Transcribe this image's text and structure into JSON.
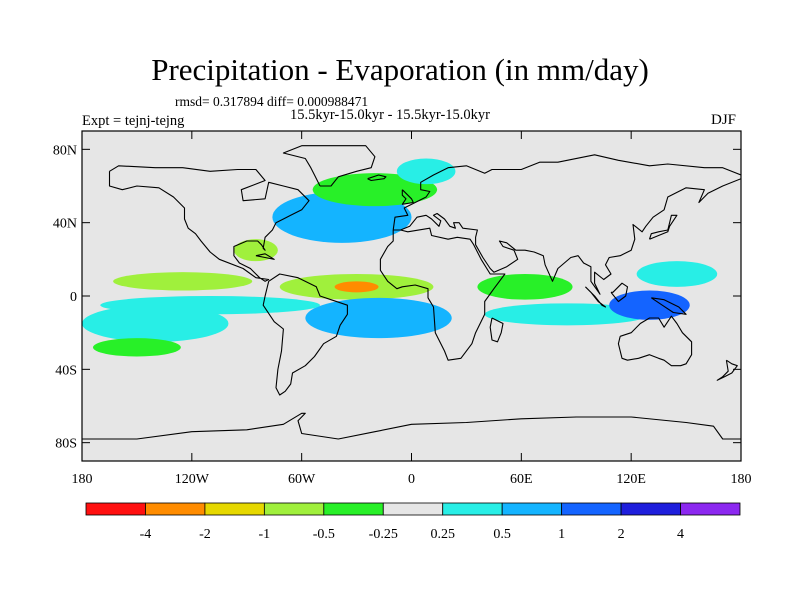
{
  "title": "Precipitation - Evaporation (in mm/day)",
  "stats": "rmsd= 0.317894 diff= 0.000988471",
  "subtitle": "15.5kyr-15.0kyr - 15.5kyr-15.0kyr",
  "experiment": "Expt = tejnj-tejng",
  "season": "DJF",
  "map": {
    "projection": "cylindrical-equidistant",
    "lon_range": [
      -180,
      180
    ],
    "lat_range": [
      -90,
      90
    ],
    "background_color": "#e6e6e6",
    "coastline_color": "#000000",
    "x_ticks": [
      {
        "lon": -180,
        "label": "180"
      },
      {
        "lon": -120,
        "label": "120W"
      },
      {
        "lon": -60,
        "label": "60W"
      },
      {
        "lon": 0,
        "label": "0"
      },
      {
        "lon": 60,
        "label": "60E"
      },
      {
        "lon": 120,
        "label": "120E"
      },
      {
        "lon": 180,
        "label": "180"
      }
    ],
    "y_ticks": [
      {
        "lat": 80,
        "label": "80N"
      },
      {
        "lat": 40,
        "label": "40N"
      },
      {
        "lat": 0,
        "label": "0"
      },
      {
        "lat": -40,
        "label": "40S"
      },
      {
        "lat": -80,
        "label": "80S"
      }
    ]
  },
  "colorbar": {
    "boxes": [
      "#ff1010",
      "#ff8c00",
      "#e6d800",
      "#a0f03c",
      "#28f028",
      "#e6e6e6",
      "#28eee6",
      "#14b4ff",
      "#1464ff",
      "#1e1edc",
      "#8c28f0"
    ],
    "labels": [
      "-4",
      "-2",
      "-1",
      "-0.5",
      "-0.25",
      "0.25",
      "0.5",
      "1",
      "2",
      "4"
    ]
  },
  "regions": [
    {
      "name": "north-atlantic-negative",
      "lon": -38,
      "lat": 41,
      "rlon": 24,
      "rlat": 8,
      "bin": 9
    },
    {
      "name": "north-atlantic-ring",
      "lon": -38,
      "lat": 43,
      "rlon": 38,
      "rlat": 14,
      "bin": 7
    },
    {
      "name": "north-atlantic-band",
      "lon": -20,
      "lat": 58,
      "rlon": 34,
      "rlat": 9,
      "bin": 4
    },
    {
      "name": "norwegian-sea",
      "lon": 8,
      "lat": 68,
      "rlon": 16,
      "rlat": 7,
      "bin": 6
    },
    {
      "name": "atlantic-itcz",
      "lon": -30,
      "lat": 5,
      "rlon": 42,
      "rlat": 7,
      "bin": 3
    },
    {
      "name": "atlantic-itcz-core",
      "lon": -30,
      "lat": 5,
      "rlon": 12,
      "rlat": 3,
      "bin": 1
    },
    {
      "name": "south-atlantic-negative",
      "lon": -18,
      "lat": -12,
      "rlon": 28,
      "rlat": 7,
      "bin": 9
    },
    {
      "name": "south-atlantic-ring",
      "lon": -18,
      "lat": -12,
      "rlon": 40,
      "rlat": 11,
      "bin": 7
    },
    {
      "name": "pacific-itcz",
      "lon": -125,
      "lat": 8,
      "rlon": 38,
      "rlat": 5,
      "bin": 3
    },
    {
      "name": "pacific-spcz",
      "lon": -140,
      "lat": -15,
      "rlon": 28,
      "rlat": 6,
      "bin": 8
    },
    {
      "name": "pacific-spcz-ring",
      "lon": -140,
      "lat": -15,
      "rlon": 40,
      "rlat": 10,
      "bin": 6
    },
    {
      "name": "east-pacific-band",
      "lon": -110,
      "lat": -5,
      "rlon": 60,
      "rlat": 5,
      "bin": 6
    },
    {
      "name": "indian-ocean-north",
      "lon": 62,
      "lat": 5,
      "rlon": 26,
      "rlat": 7,
      "bin": 4
    },
    {
      "name": "indian-ocean-south",
      "lon": 85,
      "lat": -10,
      "rlon": 45,
      "rlat": 6,
      "bin": 6
    },
    {
      "name": "maritime-continent",
      "lon": 130,
      "lat": -5,
      "rlon": 22,
      "rlat": 8,
      "bin": 8
    },
    {
      "name": "west-pacific",
      "lon": 145,
      "lat": 12,
      "rlon": 22,
      "rlat": 7,
      "bin": 6
    },
    {
      "name": "gulf-mexico",
      "lon": -85,
      "lat": 25,
      "rlon": 12,
      "rlat": 6,
      "bin": 3
    },
    {
      "name": "south-pacific-green",
      "lon": -150,
      "lat": -28,
      "rlon": 24,
      "rlat": 5,
      "bin": 4
    }
  ],
  "coastlines": [
    [
      [
        -165,
        68
      ],
      [
        -160,
        71
      ],
      [
        -140,
        70
      ],
      [
        -125,
        70
      ],
      [
        -110,
        68
      ],
      [
        -95,
        69
      ],
      [
        -85,
        69
      ],
      [
        -80,
        63
      ],
      [
        -93,
        58
      ],
      [
        -92,
        52
      ],
      [
        -80,
        53
      ],
      [
        -78,
        62
      ],
      [
        -70,
        60
      ],
      [
        -62,
        58
      ],
      [
        -56,
        52
      ],
      [
        -60,
        47
      ],
      [
        -66,
        44
      ],
      [
        -70,
        42
      ],
      [
        -74,
        40
      ],
      [
        -76,
        36
      ],
      [
        -80,
        32
      ],
      [
        -81,
        26
      ],
      [
        -80,
        25
      ],
      [
        -82,
        28
      ],
      [
        -84,
        30
      ],
      [
        -90,
        30
      ],
      [
        -97,
        27
      ],
      [
        -97,
        22
      ],
      [
        -94,
        18
      ],
      [
        -88,
        15
      ],
      [
        -83,
        10
      ],
      [
        -80,
        8
      ],
      [
        -78,
        9
      ],
      [
        -85,
        10
      ],
      [
        -92,
        15
      ],
      [
        -105,
        20
      ],
      [
        -110,
        24
      ],
      [
        -115,
        30
      ],
      [
        -118,
        34
      ],
      [
        -122,
        37
      ],
      [
        -124,
        42
      ],
      [
        -124,
        48
      ],
      [
        -130,
        54
      ],
      [
        -138,
        59
      ],
      [
        -150,
        60
      ],
      [
        -158,
        58
      ],
      [
        -165,
        60
      ],
      [
        -165,
        68
      ]
    ],
    [
      [
        -78,
        8
      ],
      [
        -72,
        12
      ],
      [
        -62,
        10
      ],
      [
        -52,
        5
      ],
      [
        -50,
        0
      ],
      [
        -44,
        -2
      ],
      [
        -35,
        -5
      ],
      [
        -35,
        -10
      ],
      [
        -39,
        -16
      ],
      [
        -41,
        -22
      ],
      [
        -48,
        -26
      ],
      [
        -53,
        -33
      ],
      [
        -58,
        -38
      ],
      [
        -65,
        -42
      ],
      [
        -66,
        -48
      ],
      [
        -69,
        -52
      ],
      [
        -72,
        -54
      ],
      [
        -74,
        -50
      ],
      [
        -73,
        -40
      ],
      [
        -71,
        -30
      ],
      [
        -70,
        -18
      ],
      [
        -75,
        -14
      ],
      [
        -81,
        -5
      ],
      [
        -80,
        0
      ],
      [
        -78,
        8
      ]
    ],
    [
      [
        -10,
        36
      ],
      [
        -6,
        36
      ],
      [
        -2,
        35
      ],
      [
        10,
        37
      ],
      [
        11,
        33
      ],
      [
        20,
        31
      ],
      [
        25,
        32
      ],
      [
        32,
        31
      ],
      [
        34,
        28
      ],
      [
        38,
        20
      ],
      [
        43,
        12
      ],
      [
        51,
        12
      ],
      [
        45,
        4
      ],
      [
        40,
        -3
      ],
      [
        40,
        -10
      ],
      [
        35,
        -20
      ],
      [
        33,
        -26
      ],
      [
        27,
        -34
      ],
      [
        20,
        -35
      ],
      [
        18,
        -30
      ],
      [
        13,
        -20
      ],
      [
        12,
        -6
      ],
      [
        9,
        -1
      ],
      [
        9,
        4
      ],
      [
        2,
        6
      ],
      [
        -5,
        5
      ],
      [
        -8,
        4
      ],
      [
        -13,
        8
      ],
      [
        -17,
        14
      ],
      [
        -17,
        20
      ],
      [
        -13,
        27
      ],
      [
        -10,
        30
      ],
      [
        -10,
        36
      ]
    ],
    [
      [
        -10,
        36
      ],
      [
        -9,
        43
      ],
      [
        -2,
        44
      ],
      [
        -4,
        48
      ],
      [
        2,
        51
      ],
      [
        8,
        54
      ],
      [
        10,
        57
      ],
      [
        5,
        58
      ],
      [
        5,
        62
      ],
      [
        12,
        66
      ],
      [
        20,
        70
      ],
      [
        30,
        71
      ],
      [
        40,
        67
      ],
      [
        44,
        69
      ],
      [
        60,
        69
      ],
      [
        70,
        73
      ],
      [
        80,
        73
      ],
      [
        100,
        77
      ],
      [
        113,
        74
      ],
      [
        130,
        71
      ],
      [
        140,
        72
      ],
      [
        160,
        70
      ],
      [
        170,
        70
      ],
      [
        180,
        66
      ]
    ],
    [
      [
        180,
        64
      ],
      [
        170,
        60
      ],
      [
        162,
        56
      ],
      [
        157,
        51
      ],
      [
        160,
        58
      ],
      [
        150,
        59
      ],
      [
        140,
        54
      ],
      [
        138,
        47
      ],
      [
        132,
        43
      ],
      [
        128,
        38
      ],
      [
        126,
        35
      ],
      [
        121,
        39
      ],
      [
        122,
        31
      ],
      [
        120,
        25
      ],
      [
        114,
        22
      ],
      [
        108,
        21
      ],
      [
        106,
        17
      ],
      [
        109,
        12
      ],
      [
        105,
        9
      ],
      [
        100,
        13
      ],
      [
        100,
        7
      ],
      [
        103,
        1
      ],
      [
        98,
        8
      ],
      [
        98,
        16
      ],
      [
        94,
        18
      ],
      [
        91,
        22
      ],
      [
        87,
        21
      ],
      [
        80,
        15
      ],
      [
        77,
        8
      ],
      [
        73,
        17
      ],
      [
        72,
        22
      ],
      [
        67,
        24
      ],
      [
        62,
        25
      ],
      [
        57,
        25
      ],
      [
        52,
        29
      ],
      [
        48,
        30
      ],
      [
        50,
        27
      ],
      [
        56,
        25
      ],
      [
        58,
        20
      ],
      [
        52,
        16
      ],
      [
        45,
        13
      ],
      [
        43,
        15
      ],
      [
        39,
        21
      ],
      [
        35,
        28
      ],
      [
        35,
        32
      ],
      [
        36,
        36
      ],
      [
        28,
        37
      ],
      [
        26,
        40
      ],
      [
        23,
        40
      ],
      [
        24,
        37
      ],
      [
        21,
        38
      ],
      [
        18,
        42
      ],
      [
        14,
        45
      ],
      [
        12,
        44
      ],
      [
        16,
        41
      ],
      [
        15,
        38
      ],
      [
        11,
        42
      ],
      [
        8,
        44
      ],
      [
        3,
        43
      ],
      [
        -1,
        38
      ],
      [
        -6,
        36
      ]
    ],
    [
      [
        -5,
        58
      ],
      [
        -3,
        56
      ],
      [
        0,
        53
      ],
      [
        1,
        51
      ],
      [
        -5,
        50
      ],
      [
        -3,
        53
      ],
      [
        -5,
        55
      ],
      [
        -5,
        58
      ]
    ],
    [
      [
        114,
        -22
      ],
      [
        113,
        -26
      ],
      [
        115,
        -34
      ],
      [
        118,
        -35
      ],
      [
        124,
        -34
      ],
      [
        130,
        -32
      ],
      [
        135,
        -34
      ],
      [
        138,
        -35
      ],
      [
        142,
        -38
      ],
      [
        147,
        -38
      ],
      [
        150,
        -37
      ],
      [
        153,
        -32
      ],
      [
        153,
        -25
      ],
      [
        148,
        -20
      ],
      [
        145,
        -15
      ],
      [
        142,
        -11
      ],
      [
        138,
        -17
      ],
      [
        135,
        -12
      ],
      [
        130,
        -12
      ],
      [
        125,
        -15
      ],
      [
        120,
        -20
      ],
      [
        114,
        -22
      ]
    ],
    [
      [
        -180,
        -78
      ],
      [
        -150,
        -78
      ],
      [
        -120,
        -74
      ],
      [
        -90,
        -73
      ],
      [
        -70,
        -70
      ],
      [
        -60,
        -64
      ],
      [
        -58,
        -64
      ],
      [
        -62,
        -68
      ],
      [
        -60,
        -75
      ],
      [
        -40,
        -78
      ],
      [
        -20,
        -74
      ],
      [
        0,
        -70
      ],
      [
        30,
        -69
      ],
      [
        60,
        -67
      ],
      [
        90,
        -66
      ],
      [
        120,
        -66
      ],
      [
        150,
        -69
      ],
      [
        165,
        -71
      ],
      [
        170,
        -78
      ],
      [
        180,
        -78
      ]
    ],
    [
      [
        -50,
        60
      ],
      [
        -44,
        60
      ],
      [
        -40,
        65
      ],
      [
        -30,
        68
      ],
      [
        -22,
        70
      ],
      [
        -20,
        76
      ],
      [
        -25,
        82
      ],
      [
        -60,
        82
      ],
      [
        -70,
        78
      ],
      [
        -58,
        75
      ],
      [
        -55,
        70
      ],
      [
        -53,
        66
      ],
      [
        -50,
        60
      ]
    ],
    [
      [
        95,
        5
      ],
      [
        100,
        0
      ],
      [
        104,
        -5
      ],
      [
        106,
        -6
      ],
      [
        102,
        -3
      ],
      [
        98,
        2
      ],
      [
        95,
        5
      ]
    ],
    [
      [
        109,
        2
      ],
      [
        113,
        -3
      ],
      [
        117,
        0
      ],
      [
        118,
        5
      ],
      [
        115,
        7
      ],
      [
        110,
        2
      ],
      [
        109,
        2
      ]
    ],
    [
      [
        131,
        -1
      ],
      [
        138,
        -2
      ],
      [
        146,
        -6
      ],
      [
        150,
        -10
      ],
      [
        143,
        -9
      ],
      [
        137,
        -5
      ],
      [
        131,
        -1
      ]
    ],
    [
      [
        130,
        31
      ],
      [
        131,
        34
      ],
      [
        135,
        35
      ],
      [
        140,
        36
      ],
      [
        141,
        40
      ],
      [
        142,
        44
      ],
      [
        145,
        44
      ],
      [
        141,
        38
      ],
      [
        140,
        35
      ],
      [
        135,
        33
      ],
      [
        130,
        31
      ]
    ],
    [
      [
        44,
        -12
      ],
      [
        50,
        -15
      ],
      [
        49,
        -20
      ],
      [
        47,
        -25
      ],
      [
        44,
        -24
      ],
      [
        43,
        -17
      ],
      [
        44,
        -12
      ]
    ],
    [
      [
        172,
        -35
      ],
      [
        175,
        -37
      ],
      [
        178,
        -38
      ],
      [
        175,
        -42
      ],
      [
        171,
        -44
      ],
      [
        167,
        -46
      ],
      [
        170,
        -44
      ],
      [
        173,
        -41
      ],
      [
        172,
        -35
      ]
    ],
    [
      [
        -24,
        64
      ],
      [
        -18,
        66
      ],
      [
        -14,
        65
      ],
      [
        -15,
        64
      ],
      [
        -22,
        63
      ],
      [
        -24,
        64
      ]
    ],
    [
      [
        -85,
        22
      ],
      [
        -80,
        23
      ],
      [
        -75,
        20
      ],
      [
        -80,
        21
      ],
      [
        -85,
        22
      ]
    ]
  ]
}
